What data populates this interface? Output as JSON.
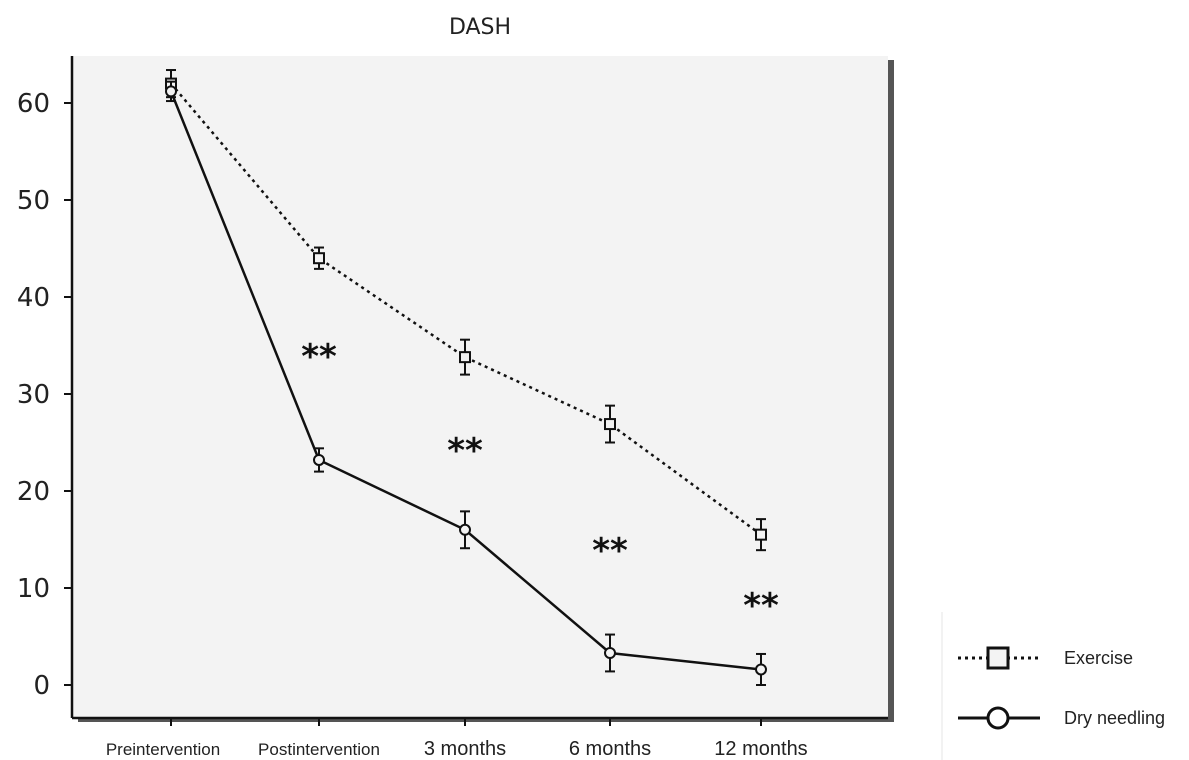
{
  "chart_data": {
    "type": "line",
    "title": "DASH",
    "categories": [
      "Preintervention",
      "Postintervention",
      "3 months",
      "6 months",
      "12 months"
    ],
    "ylim": [
      0,
      65
    ],
    "yticks": [
      0,
      10,
      20,
      30,
      40,
      50,
      60
    ],
    "grid": false,
    "legend_position": "bottom-right",
    "series": [
      {
        "name": "Exercise",
        "style": "dotted",
        "marker": "square",
        "values": [
          62,
          44,
          33.8,
          26.9,
          15.5
        ],
        "error": [
          1.4,
          1.1,
          1.8,
          1.9,
          1.6
        ]
      },
      {
        "name": "Dry needling",
        "style": "solid",
        "marker": "circle",
        "values": [
          61.2,
          23.2,
          16,
          3.3,
          1.6
        ],
        "error": [
          1.0,
          1.2,
          1.9,
          1.9,
          1.6
        ]
      }
    ],
    "annotations": [
      "**",
      "**",
      "**",
      "**"
    ],
    "colors": {
      "line": "#111111",
      "plot_background": "#f3f3f3"
    }
  }
}
